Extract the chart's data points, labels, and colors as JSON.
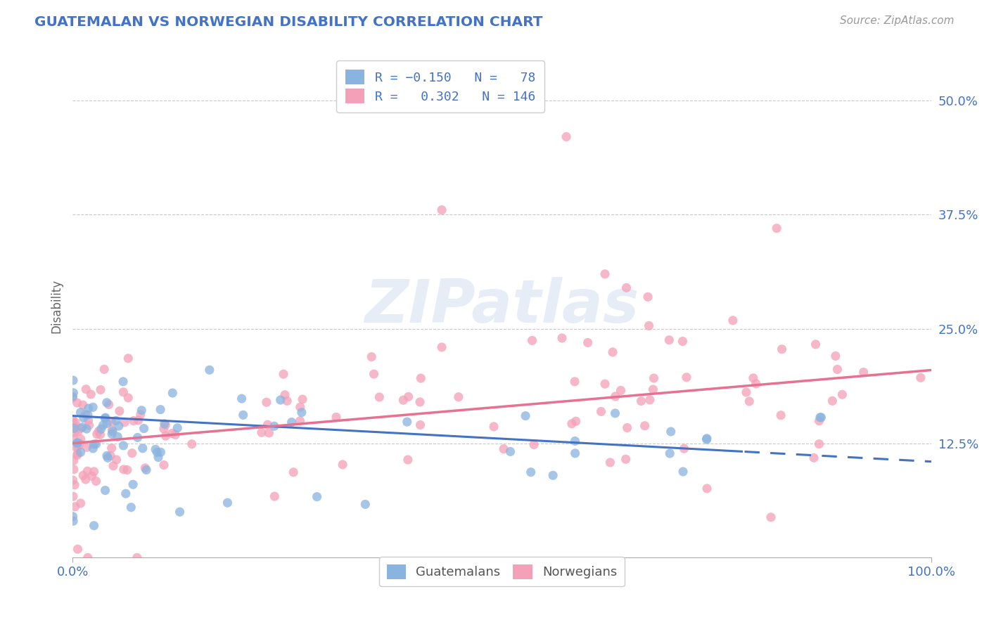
{
  "title": "GUATEMALAN VS NORWEGIAN DISABILITY CORRELATION CHART",
  "title_color": "#4472c4",
  "source_text": "Source: ZipAtlas.com",
  "ylabel": "Disability",
  "xlim": [
    0.0,
    1.0
  ],
  "ylim": [
    0.0,
    0.55
  ],
  "xtick_labels": [
    "0.0%",
    "100.0%"
  ],
  "ytick_labels": [
    "12.5%",
    "25.0%",
    "37.5%",
    "50.0%"
  ],
  "ytick_values": [
    0.125,
    0.25,
    0.375,
    0.5
  ],
  "legend_r1": "R = -0.150",
  "legend_n1": "N =  78",
  "legend_r2": "R =  0.302",
  "legend_n2": "N = 146",
  "color_blue": "#8ab4e0",
  "color_pink": "#f4a0b8",
  "line_color_blue": "#4472c4",
  "line_color_pink": "#e87090",
  "background_color": "#ffffff",
  "grid_color": "#c8c8c8",
  "seed": 12345,
  "guatemalan_N": 78,
  "norwegian_N": 146,
  "g_intercept": 0.152,
  "g_slope": -0.045,
  "n_intercept": 0.13,
  "n_slope": 0.075,
  "g_noise": 0.03,
  "n_noise": 0.04
}
